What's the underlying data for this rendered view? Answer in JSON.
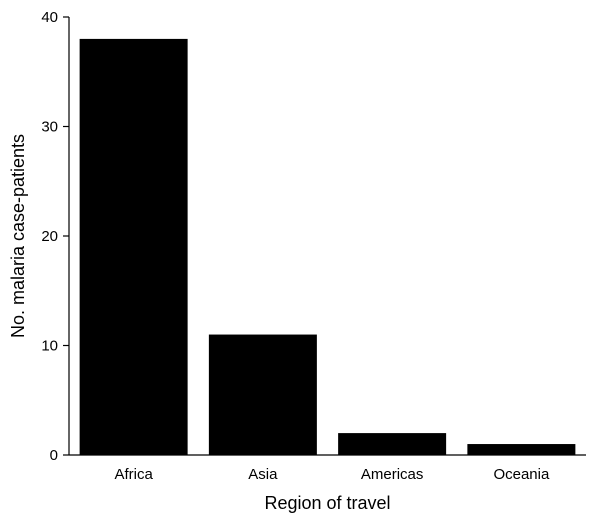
{
  "chart_data": {
    "type": "bar",
    "categories": [
      "Africa",
      "Asia",
      "Americas",
      "Oceania"
    ],
    "values": [
      38,
      11,
      2,
      1
    ],
    "xlabel": "Region of travel",
    "ylabel": "No. malaria case-patients",
    "ylim": [
      0,
      40
    ],
    "yticks": [
      0,
      10,
      20,
      30,
      40
    ],
    "grid": false,
    "legend": "none",
    "bar_color": "#000000"
  }
}
